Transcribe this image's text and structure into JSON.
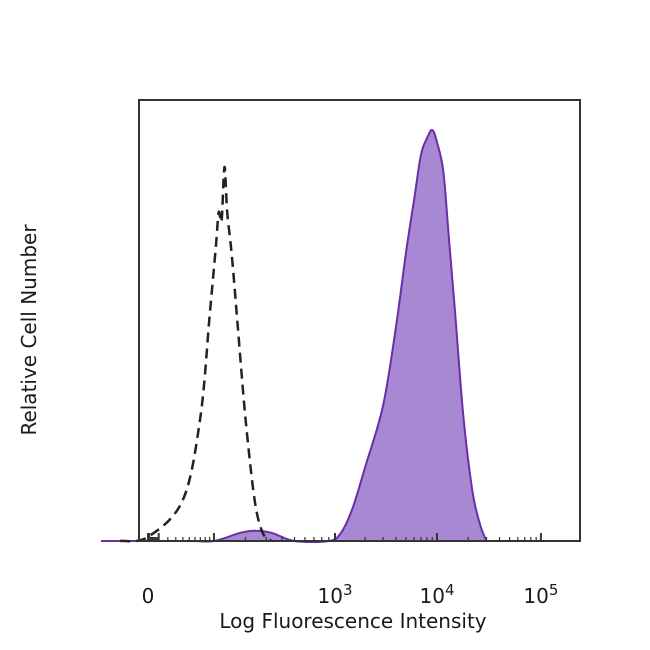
{
  "chart_data": {
    "type": "area",
    "title": "",
    "xlabel": "Log Fluorescence Intensity",
    "ylabel": "Relative Cell Number",
    "x_scale": "biexponential",
    "x_ticks": [
      {
        "value": 0,
        "base": "0",
        "exp": ""
      },
      {
        "value": 1000,
        "base": "10",
        "exp": "3"
      },
      {
        "value": 10000,
        "base": "10",
        "exp": "4"
      },
      {
        "value": 100000,
        "base": "10",
        "exp": "5"
      }
    ],
    "ylim": [
      0,
      1
    ],
    "grid": false,
    "legend": "none",
    "series": [
      {
        "style": "dashed",
        "color": "#222222",
        "fill": "none",
        "points": [
          [
            -30,
            0.0
          ],
          [
            0,
            0.01
          ],
          [
            40,
            0.1
          ],
          [
            70,
            0.3
          ],
          [
            90,
            0.55
          ],
          [
            105,
            0.72
          ],
          [
            112,
            0.8
          ],
          [
            120,
            0.78
          ],
          [
            128,
            0.91
          ],
          [
            136,
            0.8
          ],
          [
            150,
            0.7
          ],
          [
            170,
            0.53
          ],
          [
            200,
            0.3
          ],
          [
            240,
            0.1
          ],
          [
            280,
            0.02
          ],
          [
            330,
            0.0
          ]
        ]
      },
      {
        "style": "solid",
        "color": "#6a2ea6",
        "fill": "#a887d3",
        "points": [
          [
            -60,
            0.0
          ],
          [
            50,
            0.0
          ],
          [
            100,
            0.0
          ],
          [
            180,
            0.02
          ],
          [
            240,
            0.025
          ],
          [
            330,
            0.02
          ],
          [
            500,
            0.0
          ],
          [
            900,
            0.0
          ],
          [
            1150,
            0.02
          ],
          [
            1500,
            0.08
          ],
          [
            2000,
            0.18
          ],
          [
            3000,
            0.33
          ],
          [
            4000,
            0.52
          ],
          [
            5000,
            0.7
          ],
          [
            6000,
            0.83
          ],
          [
            7000,
            0.94
          ],
          [
            8000,
            0.98
          ],
          [
            9000,
            1.0
          ],
          [
            10000,
            0.97
          ],
          [
            11500,
            0.9
          ],
          [
            13000,
            0.74
          ],
          [
            15000,
            0.55
          ],
          [
            18000,
            0.3
          ],
          [
            22000,
            0.12
          ],
          [
            26000,
            0.04
          ],
          [
            30000,
            0.0
          ]
        ]
      }
    ]
  }
}
